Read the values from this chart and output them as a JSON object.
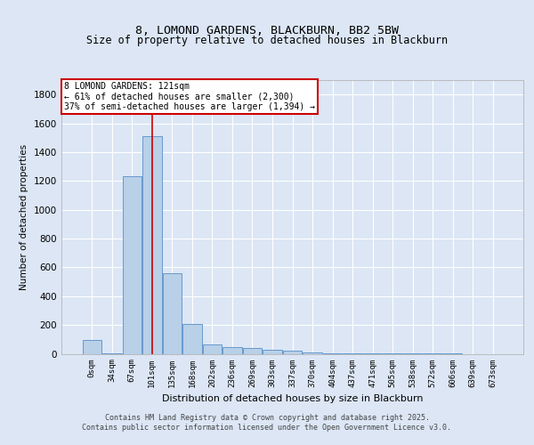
{
  "title1": "8, LOMOND GARDENS, BLACKBURN, BB2 5BW",
  "title2": "Size of property relative to detached houses in Blackburn",
  "xlabel": "Distribution of detached houses by size in Blackburn",
  "ylabel": "Number of detached properties",
  "categories": [
    "0sqm",
    "34sqm",
    "67sqm",
    "101sqm",
    "135sqm",
    "168sqm",
    "202sqm",
    "236sqm",
    "269sqm",
    "303sqm",
    "337sqm",
    "370sqm",
    "404sqm",
    "437sqm",
    "471sqm",
    "505sqm",
    "538sqm",
    "572sqm",
    "606sqm",
    "639sqm",
    "673sqm"
  ],
  "values": [
    95,
    5,
    1235,
    1510,
    560,
    208,
    65,
    47,
    38,
    28,
    22,
    7,
    5,
    3,
    2,
    2,
    1,
    1,
    1,
    0,
    0
  ],
  "bar_color": "#b8d0e8",
  "bar_edge_color": "#6699cc",
  "annotation_title": "8 LOMOND GARDENS: 121sqm",
  "annotation_line1": "← 61% of detached houses are smaller (2,300)",
  "annotation_line2": "37% of semi-detached houses are larger (1,394) →",
  "vline_x_index": 3,
  "ylim": [
    0,
    1900
  ],
  "yticks": [
    0,
    200,
    400,
    600,
    800,
    1000,
    1200,
    1400,
    1600,
    1800
  ],
  "background_color": "#dce6f5",
  "plot_bg_color": "#dce6f5",
  "grid_color": "#ffffff",
  "footer_line1": "Contains HM Land Registry data © Crown copyright and database right 2025.",
  "footer_line2": "Contains public sector information licensed under the Open Government Licence v3.0."
}
